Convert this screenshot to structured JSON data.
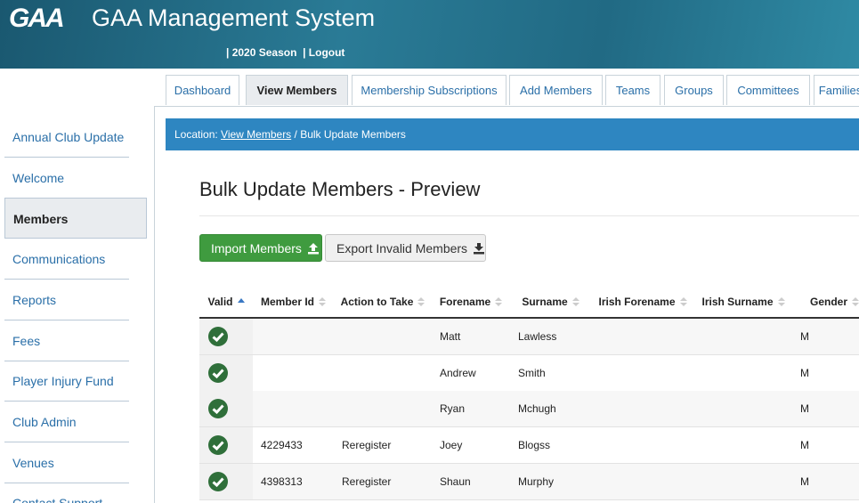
{
  "header": {
    "logo": "GAA",
    "title": "GAA Management System",
    "season": "2020 Season",
    "logout": "Logout"
  },
  "tabs": [
    "Dashboard",
    "View Members",
    "Membership Subscriptions",
    "Add Members",
    "Teams",
    "Groups",
    "Committees",
    "Families"
  ],
  "active_tab": 1,
  "sidebar": [
    "Annual Club Update",
    "Welcome",
    "Members",
    "Communications",
    "Reports",
    "Fees",
    "Player Injury Fund",
    "Club Admin",
    "Venues",
    "Contact Support"
  ],
  "active_sidebar": 2,
  "breadcrumb": {
    "prefix": "Location:",
    "link": "View Members",
    "current": "/ Bulk Update Members"
  },
  "heading": "Bulk Update Members - Preview",
  "buttons": [
    "Import Members",
    "Export Invalid Members"
  ],
  "table": {
    "columns": [
      "Valid",
      "Member Id",
      "Action to Take",
      "Forename",
      "Surname",
      "Irish Forename",
      "Irish Surname",
      "Gender"
    ],
    "rows": [
      {
        "valid": true,
        "cells": [
          null,
          null,
          "Matt",
          "Lawless",
          null,
          null,
          "M"
        ]
      },
      {
        "valid": true,
        "cells": [
          null,
          null,
          "Andrew",
          "Smith",
          null,
          null,
          "M"
        ]
      },
      {
        "valid": true,
        "cells": [
          null,
          null,
          "Ryan",
          "Mchugh",
          null,
          null,
          "M"
        ]
      },
      {
        "valid": true,
        "cells": [
          "4229433",
          "Reregister",
          "Joey",
          "Blogss",
          null,
          null,
          "M"
        ]
      },
      {
        "valid": true,
        "cells": [
          "4398313",
          "Reregister",
          "Shaun",
          "Murphy",
          null,
          null,
          "M"
        ]
      }
    ]
  }
}
